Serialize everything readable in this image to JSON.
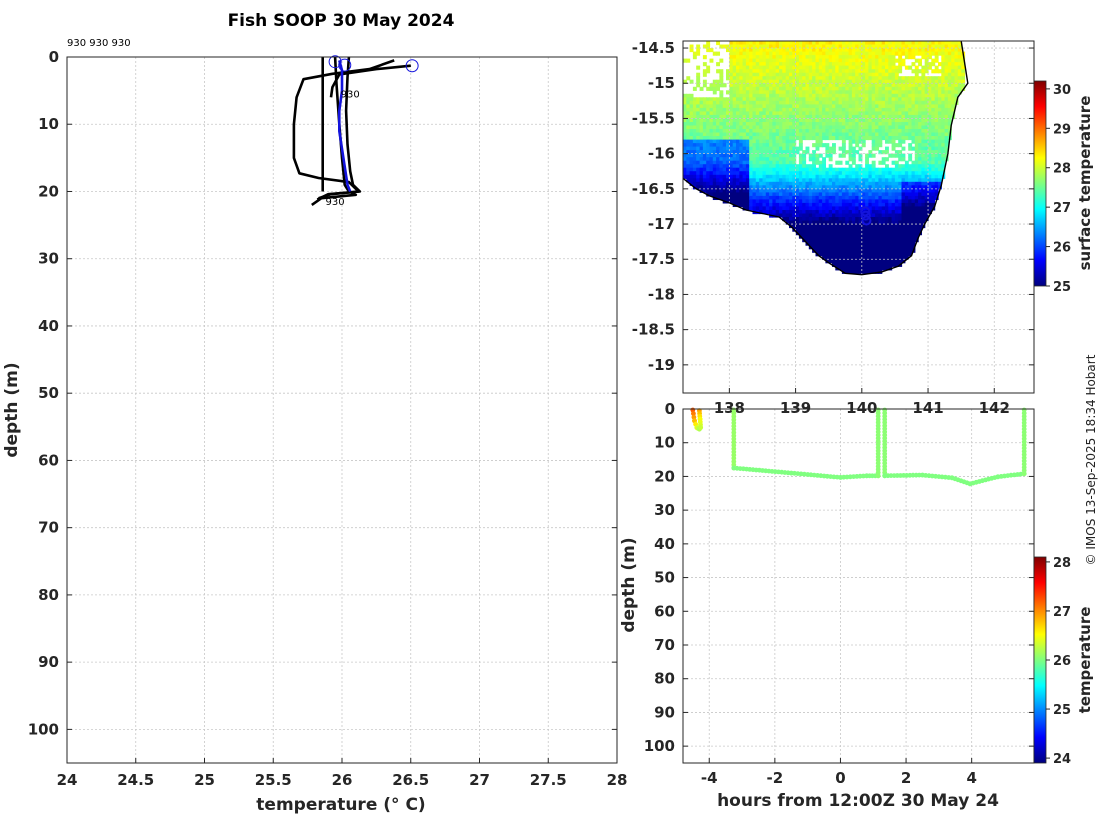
{
  "figure": {
    "credit": "© IMOS 13-Sep-2025 18:34 Hobart"
  },
  "chart_data": [
    {
      "type": "line",
      "panel": "profile",
      "title": "Fish SOOP 30 May 2024",
      "xlabel": "temperature (° C)",
      "ylabel": "depth (m)",
      "xlim": [
        24,
        28
      ],
      "ylim": [
        105,
        0
      ],
      "xticks": [
        24,
        24.5,
        25,
        25.5,
        26,
        26.5,
        27,
        27.5,
        28
      ],
      "xtick_labels": [
        "24",
        "24.5",
        "25",
        "25.5",
        "26",
        "26.5",
        "27",
        "27.5",
        "28"
      ],
      "yticks": [
        0,
        10,
        20,
        30,
        40,
        50,
        60,
        70,
        80,
        90,
        100
      ],
      "grid": true,
      "corner_note": "930 930 930",
      "annotations": [
        {
          "text": "930",
          "x": 25.99,
          "y": 6
        },
        {
          "text": "930",
          "x": 25.88,
          "y": 22
        }
      ],
      "series": [
        {
          "color": "#000000",
          "points": [
            [
              25.86,
              0
            ],
            [
              25.86,
              3
            ],
            [
              25.86,
              10
            ],
            [
              25.86,
              15
            ],
            [
              25.86,
              20
            ]
          ]
        },
        {
          "color": "#000000",
          "points": [
            [
              25.95,
              0
            ],
            [
              25.96,
              4
            ],
            [
              25.98,
              10
            ],
            [
              26.0,
              15
            ],
            [
              26.02,
              19
            ],
            [
              26.05,
              20
            ],
            [
              26.1,
              20.5
            ],
            [
              25.85,
              21
            ],
            [
              25.78,
              22
            ]
          ]
        },
        {
          "color": "#000000",
          "points": [
            [
              26.05,
              0
            ],
            [
              26.04,
              3
            ],
            [
              26.03,
              8
            ],
            [
              26.04,
              13
            ],
            [
              26.06,
              17
            ],
            [
              26.08,
              19
            ],
            [
              26.13,
              20
            ],
            [
              25.9,
              20.4
            ],
            [
              25.82,
              21.2
            ]
          ]
        },
        {
          "color": "#000000",
          "points": [
            [
              26.38,
              0.5
            ],
            [
              26.2,
              1.8
            ],
            [
              25.93,
              2.5
            ],
            [
              25.72,
              3.3
            ],
            [
              25.67,
              6
            ],
            [
              25.65,
              10
            ],
            [
              25.65,
              15
            ],
            [
              25.69,
              17.3
            ],
            [
              25.83,
              18
            ],
            [
              26.05,
              18.6
            ],
            [
              26.12,
              20
            ],
            [
              25.92,
              20.4
            ],
            [
              25.83,
              21
            ]
          ]
        },
        {
          "color": "#000000",
          "points": [
            [
              26.5,
              1.3
            ],
            [
              26.25,
              1.8
            ],
            [
              25.98,
              2.6
            ],
            [
              25.93,
              4.5
            ],
            [
              25.92,
              6
            ]
          ]
        },
        {
          "color": "#1414dc",
          "points": [
            [
              25.98,
              0.5
            ],
            [
              26.0,
              2
            ],
            [
              26.0,
              5
            ],
            [
              25.98,
              8
            ],
            [
              25.98,
              11
            ],
            [
              26.01,
              15
            ],
            [
              26.04,
              19
            ],
            [
              26.06,
              20
            ]
          ]
        }
      ],
      "markers": [
        {
          "x": 25.95,
          "y": 0.7,
          "color": "#1414dc"
        },
        {
          "x": 26.02,
          "y": 1.2,
          "color": "#1414dc"
        },
        {
          "x": 26.51,
          "y": 1.3,
          "color": "#1414dc"
        }
      ]
    },
    {
      "type": "heatmap",
      "panel": "map",
      "colorbar_label": "surface temperature",
      "colorbar_ticks": [
        25,
        26,
        27,
        28,
        29,
        30
      ],
      "clim": [
        25,
        30.2
      ],
      "xlim": [
        137.3,
        142.6
      ],
      "ylim": [
        -19.4,
        -14.4
      ],
      "xticks": [
        138,
        139,
        140,
        141,
        142
      ],
      "xtick_labels": [
        "138",
        "139",
        "140",
        "141",
        "142"
      ],
      "yticks": [
        -14.5,
        -15,
        -15.5,
        -16,
        -16.5,
        -17,
        -17.5,
        -18,
        -18.5,
        -19
      ],
      "ytick_labels": [
        "-14.5",
        "-15",
        "-15.5",
        "-16",
        "-16.5",
        "-17",
        "-17.5",
        "-18",
        "-18.5",
        "-19"
      ],
      "grid": true,
      "coastline": [
        [
          137.3,
          -16.35
        ],
        [
          137.5,
          -16.5
        ],
        [
          137.7,
          -16.6
        ],
        [
          138.0,
          -16.7
        ],
        [
          138.25,
          -16.8
        ],
        [
          138.5,
          -16.85
        ],
        [
          138.75,
          -16.9
        ],
        [
          138.95,
          -17.05
        ],
        [
          139.15,
          -17.25
        ],
        [
          139.35,
          -17.45
        ],
        [
          139.5,
          -17.55
        ],
        [
          139.75,
          -17.7
        ],
        [
          140.0,
          -17.72
        ],
        [
          140.3,
          -17.68
        ],
        [
          140.55,
          -17.6
        ],
        [
          140.75,
          -17.45
        ],
        [
          140.85,
          -17.2
        ],
        [
          140.95,
          -17.0
        ],
        [
          141.1,
          -16.75
        ],
        [
          141.2,
          -16.45
        ],
        [
          141.3,
          -16.0
        ],
        [
          141.35,
          -15.6
        ],
        [
          141.45,
          -15.2
        ],
        [
          141.6,
          -15.0
        ],
        [
          141.55,
          -14.7
        ],
        [
          141.5,
          -14.4
        ]
      ],
      "track": [
        [
          140.05,
          -16.82
        ],
        [
          140.06,
          -16.88
        ],
        [
          140.07,
          -16.95
        ]
      ],
      "track_color": "#1414dc"
    },
    {
      "type": "scatter",
      "panel": "track",
      "xlabel": "hours from 12:00Z 30 May 24",
      "ylabel": "depth (m)",
      "xlim": [
        -4.8,
        5.9
      ],
      "ylim": [
        105,
        0
      ],
      "xticks": [
        -4,
        -2,
        0,
        2,
        4
      ],
      "xtick_labels": [
        "-4",
        "-2",
        "0",
        "2",
        "4"
      ],
      "yticks": [
        0,
        10,
        20,
        30,
        40,
        50,
        60,
        70,
        80,
        90,
        100
      ],
      "colorbar_label": "temperature",
      "colorbar_ticks": [
        24,
        25,
        26,
        27,
        28
      ],
      "clim": [
        23.9,
        28.1
      ],
      "grid": true,
      "segments": [
        {
          "x": [
            -4.5,
            -4.45,
            -4.38,
            -4.3
          ],
          "y": [
            0.3,
            3.5,
            5.5,
            6.0
          ],
          "t": [
            27.2,
            26.8,
            26.4,
            26.2
          ]
        },
        {
          "x": [
            -4.3,
            -4.28,
            -4.26
          ],
          "y": [
            0.5,
            3.0,
            5.5
          ],
          "t": [
            26.9,
            26.5,
            26.3
          ]
        },
        {
          "x": [
            -3.25,
            -3.25
          ],
          "y": [
            0.3,
            17.5
          ],
          "t": [
            26.1,
            26.1
          ]
        },
        {
          "x": [
            -3.25,
            -1.5,
            0.0,
            0.8,
            1.15
          ],
          "y": [
            17.5,
            19.0,
            20.3,
            19.8,
            19.8
          ],
          "t": [
            26.0,
            26.0,
            26.0,
            26.0,
            26.0
          ]
        },
        {
          "x": [
            1.15,
            1.15
          ],
          "y": [
            19.8,
            0.3
          ],
          "t": [
            26.05,
            26.05
          ]
        },
        {
          "x": [
            1.35,
            1.35
          ],
          "y": [
            0.3,
            19.8
          ],
          "t": [
            26.05,
            26.05
          ]
        },
        {
          "x": [
            1.35,
            2.5,
            3.4,
            3.95,
            4.8,
            5.6
          ],
          "y": [
            19.8,
            19.6,
            20.4,
            22.2,
            20.1,
            19.2
          ],
          "t": [
            26.0,
            26.0,
            26.0,
            26.0,
            26.0,
            26.0
          ]
        },
        {
          "x": [
            5.6,
            5.6
          ],
          "y": [
            19.2,
            0.3
          ],
          "t": [
            26.05,
            26.05
          ]
        }
      ]
    }
  ]
}
